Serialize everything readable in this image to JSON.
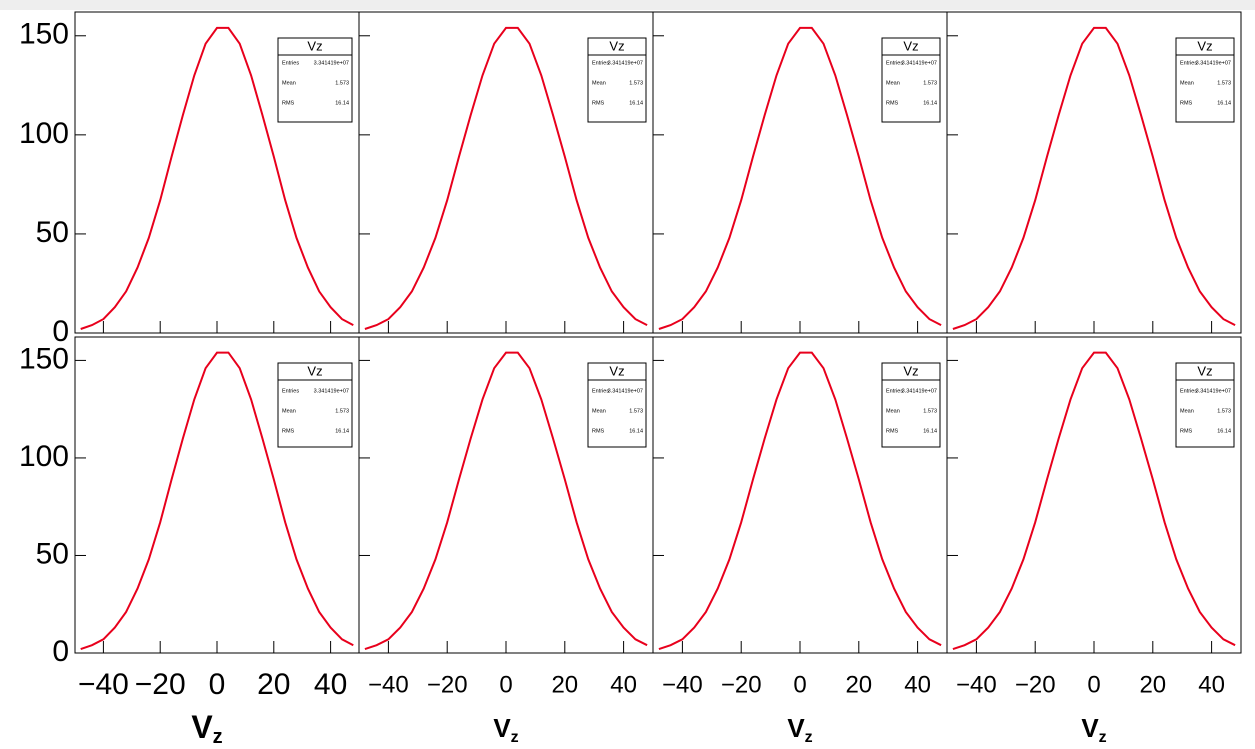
{
  "chart_data": [
    {
      "type": "line",
      "x": [
        -48,
        -44,
        -40,
        -36,
        -32,
        -28,
        -24,
        -20,
        -16,
        -12,
        -8,
        -4,
        0,
        4,
        8,
        12,
        16,
        20,
        24,
        28,
        32,
        36,
        40,
        44,
        48
      ],
      "series": [
        {
          "color": "#e8001c",
          "values": [
            2,
            4,
            7,
            13,
            21,
            33,
            48,
            67,
            89,
            110,
            130,
            146,
            154,
            154,
            146,
            130,
            110,
            89,
            67,
            48,
            33,
            21,
            13,
            7,
            4
          ]
        }
      ],
      "xlim": [
        -50,
        50
      ],
      "ylim": [
        0,
        162
      ],
      "xticks": [
        -40,
        -20,
        0,
        20,
        40
      ],
      "yticks": [
        0,
        50,
        100,
        150
      ],
      "stats": {
        "title": "Vz",
        "rows": [
          [
            "Entries",
            "3.341419e+07"
          ],
          [
            "Mean",
            "1.573"
          ],
          [
            "RMS",
            "16.14"
          ]
        ]
      }
    },
    {
      "type": "line",
      "x": [
        -48,
        -44,
        -40,
        -36,
        -32,
        -28,
        -24,
        -20,
        -16,
        -12,
        -8,
        -4,
        0,
        4,
        8,
        12,
        16,
        20,
        24,
        28,
        32,
        36,
        40,
        44,
        48
      ],
      "series": [
        {
          "color": "#e8001c",
          "values": [
            2,
            4,
            7,
            13,
            21,
            33,
            48,
            67,
            89,
            110,
            130,
            146,
            154,
            154,
            146,
            130,
            110,
            89,
            67,
            48,
            33,
            21,
            13,
            7,
            4
          ]
        }
      ],
      "xlim": [
        -50,
        50
      ],
      "ylim": [
        0,
        162
      ],
      "xticks": [
        -40,
        -20,
        0,
        20,
        40
      ],
      "yticks": [
        0,
        50,
        100,
        150
      ],
      "stats": {
        "title": "Vz",
        "rows": [
          [
            "Entries",
            "3.341419e+07"
          ],
          [
            "Mean",
            "1.573"
          ],
          [
            "RMS",
            "16.14"
          ]
        ]
      }
    },
    {
      "type": "line",
      "x": [
        -48,
        -44,
        -40,
        -36,
        -32,
        -28,
        -24,
        -20,
        -16,
        -12,
        -8,
        -4,
        0,
        4,
        8,
        12,
        16,
        20,
        24,
        28,
        32,
        36,
        40,
        44,
        48
      ],
      "series": [
        {
          "color": "#e8001c",
          "values": [
            2,
            4,
            7,
            13,
            21,
            33,
            48,
            67,
            89,
            110,
            130,
            146,
            154,
            154,
            146,
            130,
            110,
            89,
            67,
            48,
            33,
            21,
            13,
            7,
            4
          ]
        }
      ],
      "xlim": [
        -50,
        50
      ],
      "ylim": [
        0,
        162
      ],
      "xticks": [
        -40,
        -20,
        0,
        20,
        40
      ],
      "yticks": [
        0,
        50,
        100,
        150
      ],
      "stats": {
        "title": "Vz",
        "rows": [
          [
            "Entries",
            "3.341419e+07"
          ],
          [
            "Mean",
            "1.573"
          ],
          [
            "RMS",
            "16.14"
          ]
        ]
      }
    },
    {
      "type": "line",
      "x": [
        -48,
        -44,
        -40,
        -36,
        -32,
        -28,
        -24,
        -20,
        -16,
        -12,
        -8,
        -4,
        0,
        4,
        8,
        12,
        16,
        20,
        24,
        28,
        32,
        36,
        40,
        44,
        48
      ],
      "series": [
        {
          "color": "#e8001c",
          "values": [
            2,
            4,
            7,
            13,
            21,
            33,
            48,
            67,
            89,
            110,
            130,
            146,
            154,
            154,
            146,
            130,
            110,
            89,
            67,
            48,
            33,
            21,
            13,
            7,
            4
          ]
        }
      ],
      "xlim": [
        -50,
        50
      ],
      "ylim": [
        0,
        162
      ],
      "xticks": [
        -40,
        -20,
        0,
        20,
        40
      ],
      "yticks": [
        0,
        50,
        100,
        150
      ],
      "stats": {
        "title": "Vz",
        "rows": [
          [
            "Entries",
            "3.341419e+07"
          ],
          [
            "Mean",
            "1.573"
          ],
          [
            "RMS",
            "16.14"
          ]
        ]
      }
    },
    {
      "type": "line",
      "x": [
        -48,
        -44,
        -40,
        -36,
        -32,
        -28,
        -24,
        -20,
        -16,
        -12,
        -8,
        -4,
        0,
        4,
        8,
        12,
        16,
        20,
        24,
        28,
        32,
        36,
        40,
        44,
        48
      ],
      "series": [
        {
          "color": "#e8001c",
          "values": [
            2,
            4,
            7,
            13,
            21,
            33,
            48,
            67,
            89,
            110,
            130,
            146,
            154,
            154,
            146,
            130,
            110,
            89,
            67,
            48,
            33,
            21,
            13,
            7,
            4
          ]
        }
      ],
      "xlim": [
        -50,
        50
      ],
      "ylim": [
        0,
        162
      ],
      "xticks": [
        -40,
        -20,
        0,
        20,
        40
      ],
      "yticks": [
        0,
        50,
        100,
        150
      ],
      "xlabel": [
        "V",
        "z"
      ],
      "stats": {
        "title": "Vz",
        "rows": [
          [
            "Entries",
            "3.341419e+07"
          ],
          [
            "Mean",
            "1.573"
          ],
          [
            "RMS",
            "16.14"
          ]
        ]
      }
    },
    {
      "type": "line",
      "x": [
        -48,
        -44,
        -40,
        -36,
        -32,
        -28,
        -24,
        -20,
        -16,
        -12,
        -8,
        -4,
        0,
        4,
        8,
        12,
        16,
        20,
        24,
        28,
        32,
        36,
        40,
        44,
        48
      ],
      "series": [
        {
          "color": "#e8001c",
          "values": [
            2,
            4,
            7,
            13,
            21,
            33,
            48,
            67,
            89,
            110,
            130,
            146,
            154,
            154,
            146,
            130,
            110,
            89,
            67,
            48,
            33,
            21,
            13,
            7,
            4
          ]
        }
      ],
      "xlim": [
        -50,
        50
      ],
      "ylim": [
        0,
        162
      ],
      "xticks": [
        -40,
        -20,
        0,
        20,
        40
      ],
      "yticks": [
        0,
        50,
        100,
        150
      ],
      "xlabel": [
        "V",
        "z"
      ],
      "stats": {
        "title": "Vz",
        "rows": [
          [
            "Entries",
            "3.341419e+07"
          ],
          [
            "Mean",
            "1.573"
          ],
          [
            "RMS",
            "16.14"
          ]
        ]
      }
    },
    {
      "type": "line",
      "x": [
        -48,
        -44,
        -40,
        -36,
        -32,
        -28,
        -24,
        -20,
        -16,
        -12,
        -8,
        -4,
        0,
        4,
        8,
        12,
        16,
        20,
        24,
        28,
        32,
        36,
        40,
        44,
        48
      ],
      "series": [
        {
          "color": "#e8001c",
          "values": [
            2,
            4,
            7,
            13,
            21,
            33,
            48,
            67,
            89,
            110,
            130,
            146,
            154,
            154,
            146,
            130,
            110,
            89,
            67,
            48,
            33,
            21,
            13,
            7,
            4
          ]
        }
      ],
      "xlim": [
        -50,
        50
      ],
      "ylim": [
        0,
        162
      ],
      "xticks": [
        -40,
        -20,
        0,
        20,
        40
      ],
      "yticks": [
        0,
        50,
        100,
        150
      ],
      "xlabel": [
        "V",
        "z"
      ],
      "stats": {
        "title": "Vz",
        "rows": [
          [
            "Entries",
            "3.341419e+07"
          ],
          [
            "Mean",
            "1.573"
          ],
          [
            "RMS",
            "16.14"
          ]
        ]
      }
    },
    {
      "type": "line",
      "x": [
        -48,
        -44,
        -40,
        -36,
        -32,
        -28,
        -24,
        -20,
        -16,
        -12,
        -8,
        -4,
        0,
        4,
        8,
        12,
        16,
        20,
        24,
        28,
        32,
        36,
        40,
        44,
        48
      ],
      "series": [
        {
          "color": "#e8001c",
          "values": [
            2,
            4,
            7,
            13,
            21,
            33,
            48,
            67,
            89,
            110,
            130,
            146,
            154,
            154,
            146,
            130,
            110,
            89,
            67,
            48,
            33,
            21,
            13,
            7,
            4
          ]
        }
      ],
      "xlim": [
        -50,
        50
      ],
      "ylim": [
        0,
        162
      ],
      "xticks": [
        -40,
        -20,
        0,
        20,
        40
      ],
      "yticks": [
        0,
        50,
        100,
        150
      ],
      "xlabel": [
        "V",
        "z"
      ],
      "stats": {
        "title": "Vz",
        "rows": [
          [
            "Entries",
            "3.341419e+07"
          ],
          [
            "Mean",
            "1.573"
          ],
          [
            "RMS",
            "16.14"
          ]
        ]
      }
    }
  ]
}
